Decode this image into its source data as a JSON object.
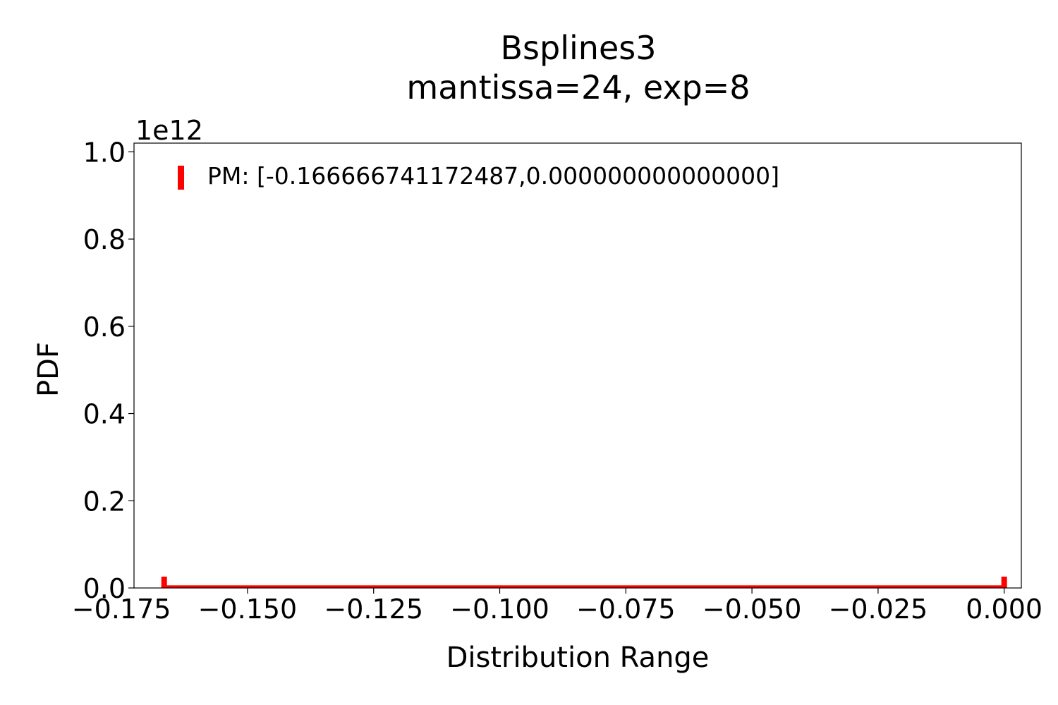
{
  "chart_data": {
    "type": "histogram",
    "title": "Bsplines3",
    "subtitle": "mantissa=24, exp=8",
    "xlabel": "Distribution Range",
    "ylabel": "PDF",
    "y_offset_label": "1e12",
    "xlim": [
      -0.1725,
      0.0034
    ],
    "ylim": [
      0,
      1.02
    ],
    "xticks": [
      -0.175,
      -0.15,
      -0.125,
      -0.1,
      -0.075,
      -0.05,
      -0.025,
      0.0
    ],
    "xtick_labels": [
      "−0.175",
      "−0.150",
      "−0.125",
      "−0.100",
      "−0.075",
      "−0.050",
      "−0.025",
      "0.000"
    ],
    "yticks": [
      0.0,
      0.2,
      0.4,
      0.6,
      0.8,
      1.0
    ],
    "ytick_labels": [
      "0.0",
      "0.2",
      "0.4",
      "0.6",
      "0.8",
      "1.0"
    ],
    "series": [
      {
        "name": "PM: [-0.166666741172487,0.000000000000000]",
        "color": "#ff0000",
        "range": [
          -0.166666741172487,
          0.0
        ],
        "baseline_value": 0.006,
        "edge_value": 0.026
      }
    ],
    "legend_position": "top-left",
    "grid": false
  }
}
